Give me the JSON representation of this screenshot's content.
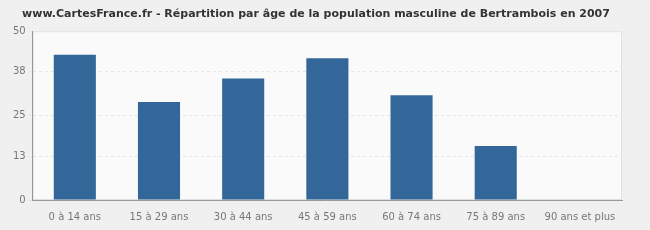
{
  "chart_data": {
    "type": "bar",
    "title": "www.CartesFrance.fr - Répartition par âge de la population masculine de Bertrambois en 2007",
    "categories": [
      "0 à 14 ans",
      "15 à 29 ans",
      "30 à 44 ans",
      "45 à 59 ans",
      "60 à 74 ans",
      "75 à 89 ans",
      "90 ans et plus"
    ],
    "values": [
      43,
      29,
      36,
      42,
      31,
      16,
      0
    ],
    "color": "#336699",
    "ylim": [
      0,
      50
    ],
    "yticks": [
      0,
      13,
      25,
      38,
      50
    ],
    "grid": true
  }
}
